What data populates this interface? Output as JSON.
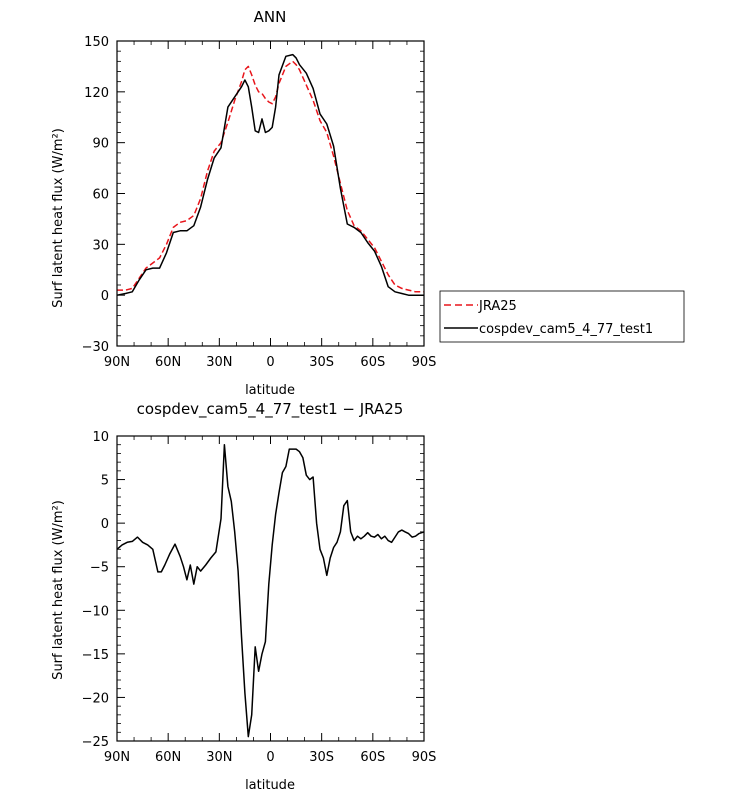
{
  "chart_data": [
    {
      "type": "line",
      "title": "ANN",
      "xlabel": "latitude",
      "ylabel": "Surf latent heat flux (W/m²)",
      "xlim": [
        90,
        -90
      ],
      "ylim": [
        -30,
        150
      ],
      "xticks": [
        90,
        60,
        30,
        0,
        -30,
        -60,
        -90
      ],
      "xtick_labels": [
        "90N",
        "60N",
        "30N",
        "0",
        "30S",
        "60S",
        "90S"
      ],
      "yticks": [
        -30,
        0,
        30,
        60,
        90,
        120,
        150
      ],
      "ytick_labels": [
        "−30",
        "0",
        "30",
        "60",
        "90",
        "120",
        "150"
      ],
      "legend_placement": "right",
      "series": [
        {
          "name": "JRA25",
          "color": "#e8151b",
          "dash": "dashed",
          "x": [
            90,
            85,
            81,
            77,
            73,
            69,
            65,
            61,
            57,
            53,
            49,
            45,
            41,
            37,
            33,
            29,
            25,
            21,
            17,
            15,
            13,
            11,
            9,
            7,
            5,
            3,
            1,
            -1,
            -3,
            -5,
            -9,
            -13,
            -15,
            -17,
            -21,
            -25,
            -29,
            -33,
            -37,
            -41,
            -45,
            -49,
            -53,
            -57,
            -61,
            -65,
            -69,
            -73,
            -77,
            -81,
            -85,
            -90
          ],
          "y": [
            3,
            3,
            4,
            10,
            16,
            19,
            22,
            30,
            40,
            43,
            44,
            47,
            57,
            73,
            85,
            90,
            102,
            115,
            126,
            133,
            135,
            130,
            124,
            120,
            119,
            116,
            114,
            113,
            117,
            125,
            135,
            138,
            136,
            133,
            124,
            115,
            103,
            96,
            82,
            66,
            50,
            41,
            38,
            33,
            28,
            20,
            12,
            6,
            4,
            3,
            2,
            2
          ]
        },
        {
          "name": "cospdev_cam5_4_77_test1",
          "color": "#000000",
          "dash": "solid",
          "x": [
            90,
            85,
            81,
            77,
            73,
            69,
            65,
            61,
            57,
            53,
            49,
            45,
            41,
            37,
            33,
            29,
            25,
            21,
            17,
            15,
            13,
            11,
            9,
            7,
            5,
            3,
            1,
            -1,
            -3,
            -5,
            -9,
            -13,
            -15,
            -17,
            -21,
            -25,
            -29,
            -33,
            -37,
            -41,
            -45,
            -49,
            -53,
            -57,
            -61,
            -65,
            -69,
            -73,
            -77,
            -81,
            -85,
            -90
          ],
          "y": [
            0,
            1,
            2,
            9,
            15,
            16,
            16,
            25,
            37,
            38,
            38,
            41,
            52,
            68,
            81,
            87,
            111,
            117,
            123,
            127,
            123,
            111,
            97,
            96,
            104,
            96,
            97,
            99,
            111,
            130,
            141,
            142,
            140,
            136,
            131,
            122,
            107,
            101,
            88,
            63,
            42,
            40,
            37,
            31,
            26,
            17,
            5,
            2,
            1,
            0,
            0,
            0
          ]
        }
      ]
    },
    {
      "type": "line",
      "title": "cospdev_cam5_4_77_test1 − JRA25",
      "xlabel": "latitude",
      "ylabel": "Surf latent heat flux (W/m²)",
      "xlim": [
        90,
        -90
      ],
      "ylim": [
        -25,
        10
      ],
      "xticks": [
        90,
        60,
        30,
        0,
        -30,
        -60,
        -90
      ],
      "xtick_labels": [
        "90N",
        "60N",
        "30N",
        "0",
        "30S",
        "60S",
        "90S"
      ],
      "yticks": [
        -25,
        -20,
        -15,
        -10,
        -5,
        0,
        5,
        10
      ],
      "ytick_labels": [
        "−25",
        "−20",
        "−15",
        "−10",
        "−5",
        "0",
        "5",
        "10"
      ],
      "series": [
        {
          "color": "#000000",
          "x": [
            90,
            87,
            84,
            81,
            78,
            75,
            72,
            69,
            66,
            64,
            62,
            59,
            56,
            53,
            51,
            49,
            47,
            45,
            43,
            41,
            38,
            35,
            32,
            29,
            27,
            25,
            23,
            21,
            19,
            17,
            15,
            13,
            11,
            9,
            7,
            5,
            3,
            1,
            -1,
            -3,
            -5,
            -7,
            -9,
            -11,
            -13,
            -15,
            -17,
            -19,
            -21,
            -23,
            -25,
            -27,
            -29,
            -31,
            -33,
            -35,
            -37,
            -39,
            -41,
            -43,
            -45,
            -47,
            -49,
            -51,
            -53,
            -55,
            -57,
            -59,
            -61,
            -63,
            -65,
            -67,
            -69,
            -71,
            -73,
            -75,
            -77,
            -79,
            -81,
            -83,
            -85,
            -87,
            -90
          ],
          "y": [
            -3,
            -2.5,
            -2.2,
            -2.1,
            -1.6,
            -2.2,
            -2.5,
            -3,
            -5.6,
            -5.6,
            -4.8,
            -3.5,
            -2.4,
            -3.8,
            -5,
            -6.5,
            -4.8,
            -7,
            -5,
            -5.5,
            -4.8,
            -4,
            -3.3,
            0.5,
            9,
            4.2,
            2.5,
            -1,
            -5.5,
            -13,
            -19.5,
            -24.5,
            -22,
            -14.2,
            -17,
            -15,
            -13.6,
            -7,
            -2.5,
            1,
            3.5,
            5.8,
            6.5,
            8.5,
            8.5,
            8.5,
            8.2,
            7.5,
            5.5,
            5,
            5.3,
            0,
            -3,
            -4,
            -6,
            -4,
            -2.8,
            -2.2,
            -1,
            2,
            2.6,
            -1,
            -2,
            -1.5,
            -1.8,
            -1.5,
            -1.1,
            -1.5,
            -1.6,
            -1.3,
            -1.8,
            -1.5,
            -2,
            -2.2,
            -1.6,
            -1,
            -0.8,
            -1,
            -1.2,
            -1.6,
            -1.5,
            -1.2,
            -1
          ]
        }
      ]
    }
  ]
}
